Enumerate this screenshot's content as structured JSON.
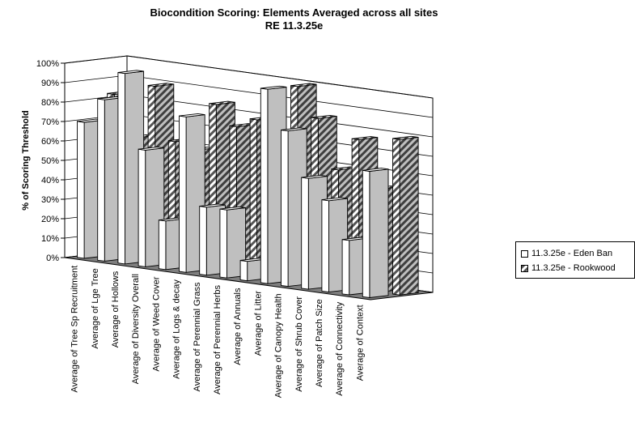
{
  "chart_data": {
    "type": "bar",
    "title": "Biocondition Scoring: Elements Averaged across all sites",
    "subtitle": "RE 11.3.25e",
    "ylabel": "% of Scoring Threshold",
    "xlabel": "",
    "ylim": [
      0,
      100
    ],
    "yticks": [
      "0%",
      "10%",
      "20%",
      "30%",
      "40%",
      "50%",
      "60%",
      "70%",
      "80%",
      "90%",
      "100%"
    ],
    "grid": true,
    "legend_position": "right",
    "categories": [
      "Average of Tree Sp Recruitment",
      "Average of Lge Tree",
      "Average of Hollows",
      "Average of Diversity Overall",
      "Average of Weed Cover",
      "Average of Logs & decay",
      "Average of Perennial Grass",
      "Average of Perennial Herbs",
      "Average of Annuals",
      "Average of Litter",
      "Average of Canopy Health",
      "Average of Shrub Cover",
      "Average of Patch Size",
      "Average of Connectivity",
      "Average of Context"
    ],
    "series": [
      {
        "name": "11.3.25e - Eden Ban",
        "values": [
          70,
          83,
          98,
          60,
          25,
          80,
          35,
          35,
          10,
          100,
          80,
          57,
          47,
          28,
          65
        ],
        "color": "#ffffff"
      },
      {
        "name": "11.3.25e - Rookwood",
        "values": [
          83,
          62,
          90,
          63,
          60,
          85,
          75,
          80,
          25,
          100,
          85,
          60,
          77,
          53,
          80
        ],
        "color": "#7f7f7f",
        "pattern": "diagonal-stripes"
      }
    ]
  }
}
